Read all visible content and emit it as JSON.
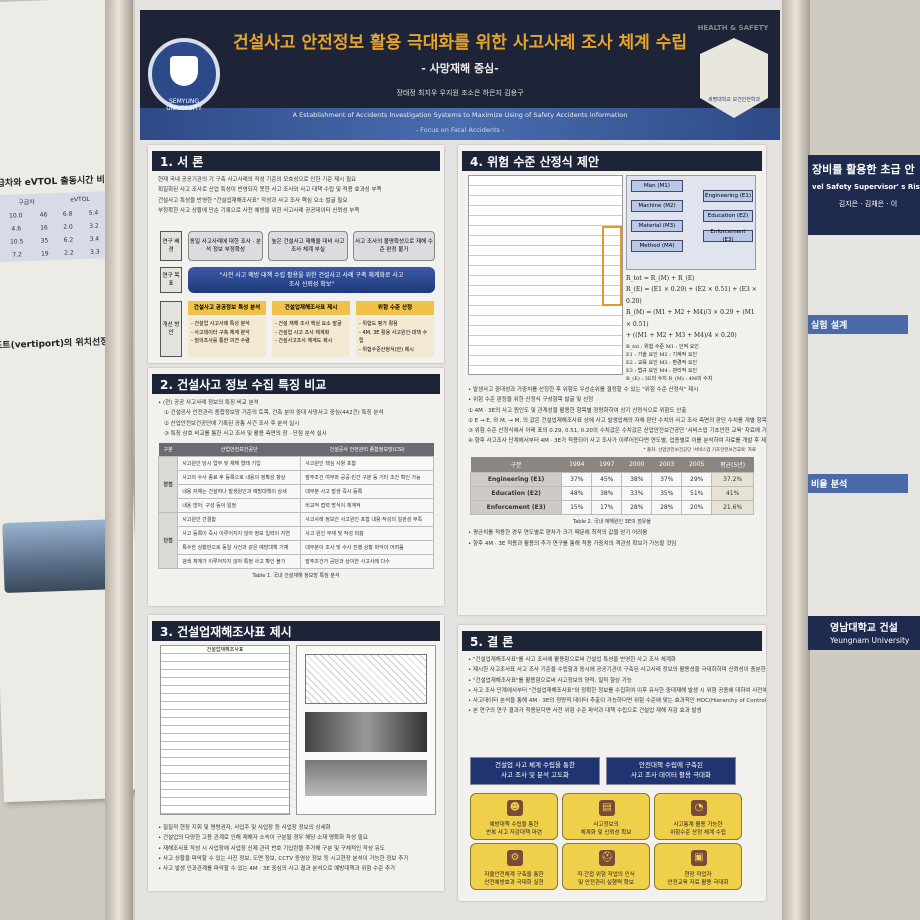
{
  "left_poster": {
    "heading": "구급차와 eVTOL 출동시간 비교",
    "table_header": [
      "구급차",
      "eVTOL"
    ],
    "rows": [
      [
        "10.0",
        "46",
        "6.8",
        "5.4"
      ],
      [
        "4.6",
        "16",
        "2.0",
        "3.2"
      ],
      [
        "10.5",
        "35",
        "6.2",
        "3.4"
      ],
      [
        "7.2",
        "19",
        "2.2",
        "3.3"
      ]
    ],
    "section": "포트(vertiport)의 위치선정"
  },
  "header": {
    "title": "건설사고 안전정보 활용 극대화를 위한 사고사례 조사 체계 수립",
    "subtitle": "- 사망재해 중심-",
    "authors": "장태정  최지우  우지원  조소은  하은지  김용구",
    "english_title": "A Establishment of Accidents Investigation Systems to Maximize Using of Safety Accidents Information",
    "english_subtitle": "- Focus on Fatal Accidents -",
    "left_logo": "SEMYUNG UNIVERSITY",
    "right_logo_top": "HEALTH & SAFETY",
    "right_logo": "세명대학교 보건안전학과"
  },
  "section1": {
    "title": "1. 서 론",
    "bullets": [
      "현재 국내 공공기관의 기 구축 사고사례의 작성 기준의 모호성으로 인한 기준 제시 필요",
      "획일화된 사고 조사로 산업 특성이 반영되지 못한 사고 조사와 사고 대책 수립 및 적용 효과성 부족",
      "건설사고 특성을 반영한 \"건설업재해조사표\" 작성과 사고 조사 핵심 요소 발굴 필요",
      "부정확한 사고 상황에 단순 기록으로 사전 예방을 위한 사고사례 공공데이터 신뢰성 부족"
    ],
    "labels": [
      "연구 배경",
      "연구 목표",
      "개선 방안"
    ],
    "background": [
      "동일 사고사례에 대한 조사 · 분석 정보 부정확성",
      "높은 건설사고 재해율 대비 사고 조사 체계 부실",
      "사고 조사의 불명확성으로 재해 수준 판정 불가"
    ],
    "goal": "\"사전 사고 예방 대책 수립 활용을 위한 건설사고 사례 구축 체계화로 사고 조사 신뢰성 확보\"",
    "plans": [
      {
        "title": "건설사고 공공정보 특성 분석",
        "items": [
          "- 건설업 사고사례 특성 분석",
          "- 사고데이터 구축 체계 분석",
          "- 질의조사를 통한 의견 수렴"
        ]
      },
      {
        "title": "건설업재해조사표 제시",
        "items": [
          "- 건설 재해 조사 핵심 요소 발굴",
          "- 건설업 사고 조사 체계화",
          "- 건설사고조사 체계도 제시"
        ]
      },
      {
        "title": "위험 수준 산정",
        "items": [
          "- 위험도 평가 활용",
          "- 4M, 3E 활용 사고원인·대책 수립",
          "- 위험수준산정식(안) 제시"
        ]
      }
    ]
  },
  "section2": {
    "title": "2. 건설사고 정보 수집 특징 비교",
    "bullets": [
      "• (현) 공공 사고사례 정보의 특징 비교 분석",
      "① 건설공사 안전관리 종합정보망 기준의 토목, 건축 분야 중대 사망사고 중심(442건) 특징 분석",
      "② 산업안전보건공단에 기록된 공통 사건 조사 후 분석 실시",
      "③ 특징 상호 비교를 통한 사고 조사 및 활용 측면의 장 · 단점 분석 실시"
    ],
    "table": {
      "headers": [
        "구분",
        "산업안전보건공단",
        "건설공사 안전관리 종합정보망(CSI)"
      ],
      "groups": [
        {
          "label": "장점",
          "rows": [
            [
              "사고원인 당시 업무 및 재해 형태 기입",
              "사고원인 핵심 사항 포함"
            ],
            [
              "사고의 수사 종료 후 등록으로 내용의 정확성 향상",
              "발주조건 여부와 공공·민간 구분 등 기타 조건 확인 가능"
            ],
            [
              "내용 자체는 건설하나 발생원인과 예방대책이 상세",
              "대부분 사고 발생 즉시 등록"
            ],
            [
              "내용 많아, 구성 등이 일정",
              "비교적 접력 방식이 체계적"
            ]
          ]
        },
        {
          "label": "단점",
          "rows": [
            [
              "사고원인 간결함",
              "사고사례 정보간 사고원인 포함 내용 작성의 일관성 부족"
            ],
            [
              "사고 등록이 즉시 이루어지지 않아 정보 입력이 지연",
              "사고 원인 부재 및 작성 미흡"
            ],
            [
              "특수한 상황만으로 동일 사건과 같은 예방대책 기재",
              "대부분이 조사 및 수사 진행 상황 파악이 어려움"
            ],
            [
              "검색 체계가 이루어지지 않아 특정 사고 확인 불가",
              "발주조건가 공단과 상이한 사고사례 다수"
            ]
          ]
        }
      ]
    },
    "caption": "Table 1. 국내 건설재해 정보망 특징 분석"
  },
  "section3": {
    "title": "3. 건설업재해조사표 제시",
    "form_title": "건설업재해조사표",
    "bullets": [
      "• 질질적 현장 지휘 및 명령권자, 사업주 및 사업장 등 사업장 정보의 상세화",
      "• 건설업의 다양한 고용 관계로 인해 재해자 소속이 구분될 경우 해당 소재 명확화 작성 필요",
      "• 재해조사표 작성 시 사업장에 사업장 신제 관리 번호 기입란을 추가해 구분 및 구체적인 작성 유도",
      "• 사고 상황을 파악할 수 있는 사진 정보, 도면 정보, CCTV 동영상 정보 등 시고현장 분석이 가능한 정보 추가",
      "• 사고 발생 인과관계를 파악할 수 있는 4M · 3E 중심의 사고 결과 분석으로 예방대책과 위험 수준 추가"
    ]
  },
  "section4": {
    "title": "4. 위험 수준 산정식 제안",
    "factors": [
      "Man (M1)",
      "Machine (M2)",
      "Material (M3)",
      "Method (M4)"
    ],
    "e_factors": [
      "Engineering (E1)",
      "Education (E2)",
      "Enforcement (E3)"
    ],
    "formula_lines": [
      "R_tot = R_(M) + R_(E)",
      "R_(E) = (E1 × 0.29) + (E2 × 0.51) + (E3 × 0.20)",
      "R_(M) = (M1 + M2 + M4)/3 × 0.29 + (M1 × 0.51)",
      "+ ((M1 + M2 + M3 + M4)/4 × 0.20)"
    ],
    "legend": [
      "R_tot : 위험 수준   M1 : 인적 요인",
      "E1 : 기술 요인   M2 : 기계적 요인",
      "E2 : 교육 요인   M3 : 환경적 요인",
      "E3 : 법규 요인   M4 : 관리적 요인",
      "R_(E) : 3E의 수치   R_(M) : 4M의 수치"
    ],
    "bullets": [
      "• 발생사고 중대성과 가중치를 산정한 후 위험도 우선순위를 결정할 수 있는 \"위험 수준 산정식\" 제시",
      "• 위험 수준 판정을 위한 산정식 구성항목 발굴 및 선정",
      "① 4M · 3E의 사고 원인도 및 관계성을 활용한 항목별 정량화하여 상기 산정식으로 위험도 산출",
      "② E → E, 와 M, → M, 의 값은 건설업재해조사표 상에 사고 발생업체의 자체 판단 수치와 사고 조사 측면의 판단 수치를 개별 항목별로 1~10의 값으로 선정",
      "③ 위험 수준 산정식에서 아래 표의 0.29, 0.51, 0.20의 수치값은 수치값은 산업안전보건공단 '서비스업 기초안전 교육' 자료에 기재된 국내 재해원인 3E 분류의 연구 결과를 적용하여 제시",
      "④ 향후 사고조사 단계에서부터 4M · 3E가 적용되어 사고 조사가 이루어진다면 연도별, 업종별로 이를 분석하여 자료를 개발 후 제공 · 활용한다면 상기식을 이용한 위험 수준 판단이 가능해질 것"
    ],
    "source": "* 출처: 산업안전보건공단 '서비스업 기초안전보건교육' 자료",
    "table": {
      "headers": [
        "구분",
        "1994",
        "1997",
        "2000",
        "2003",
        "2005",
        "평균(5년)"
      ],
      "rows": [
        {
          "label": "Engineering (E1)",
          "values": [
            "37%",
            "45%",
            "38%",
            "37%",
            "29%",
            "37.2%"
          ]
        },
        {
          "label": "Education (E2)",
          "values": [
            "48%",
            "38%",
            "33%",
            "35%",
            "51%",
            "41%"
          ]
        },
        {
          "label": "Enforcement (E3)",
          "values": [
            "15%",
            "17%",
            "28%",
            "28%",
            "20%",
            "21.6%"
          ]
        }
      ]
    },
    "caption": "Table 2. 국내 재해원인 3E의 점유율",
    "after": [
      "• 평균치를 적용한 경우 연도별로 편차가 크기 때문에 최적의 값을 얻기 어려움",
      "• 향후 4M · 3E 적용과 활용의 추가 연구를 통해 적용 가중치의 객관성 확보가 가능할 것임"
    ]
  },
  "section5": {
    "title": "5. 결 론",
    "bullets": [
      "• \"건설업재해조사표\"를 사고 조사에 활용함으로써 건설업 특성을 반영한 사고 조사 체계화",
      "• 제시한 사고조사표 사고 조사 기준을 수립함과 동시에 공공기관이 구축된 사고사례 정보의 활용성을 극대화하며 신뢰성이 충분한 정적인 자료 활용 및 제공",
      "• \"건설업재해조사표\"를 활용함으로써 사고정보의 양적, 질적 향상 가능",
      "• 사고 조사 단계에서부터 \"건설업재해조사표\"와 정확한 정보를 수집하여 이후 유사한 중대재해 발생 시 위험 공종에 대하여 사전예방대책 수립",
      "• 사고데이터 분석을 통해 4M · 3E의 정량적 데이터 추출이 가능하다면 위험 수준에 맞는 효과적인 HOC(Hierarchy of Controls) 5단계 적용으로 현 단계의 위험 수준보다 현저히 저감",
      "• 본 연구의 연구 결과가 적용된다면 사전 위험 수준 파악과 대책 수립으로 건설업 재해 저감 효과 발생"
    ],
    "goals": [
      "건설업 사고 체계 수립을 통한\n사고 조사 및 분석 고도화",
      "안전대책 수립에 구축된\n사고 조사 데이터 활용 극대화"
    ],
    "cards": [
      {
        "icon": "worker-icon",
        "label": "예방대책 수립을 통한\n반복 사고 저감대책 마련"
      },
      {
        "icon": "documents-icon",
        "label": "사고정보의\n체계화 및 신뢰성 확보"
      },
      {
        "icon": "statistics-icon",
        "label": "사고통계 활용 가능한\n위험수준 산정 체계 수립"
      },
      {
        "icon": "gear-icon",
        "label": "자율안전체계 구축을 통한\n안전예방효과 극대화 실현"
      },
      {
        "icon": "safety-helmet-icon",
        "label": "직·간접 위험 작업의 인식\n및 안전관리 실행력 확보"
      },
      {
        "icon": "training-icon",
        "label": "현장 작업자\n안전교육 자료 활용 극대화"
      }
    ]
  },
  "right_poster": {
    "title": "장비를 활용한 초급 안",
    "english": "vel Safety Supervisor' s Risk",
    "authors": "김지은 · 김채은 · 이",
    "sections": [
      "실험 설계",
      "비율 분석"
    ],
    "footer": "영남대학교  건설",
    "footer_en": "Yeungnam University"
  },
  "colors": {
    "header_navy": "#1e2437",
    "title_orange": "#e7a42c",
    "card_yellow": "#f0cf4a",
    "goal_navy": "#1f3470"
  }
}
